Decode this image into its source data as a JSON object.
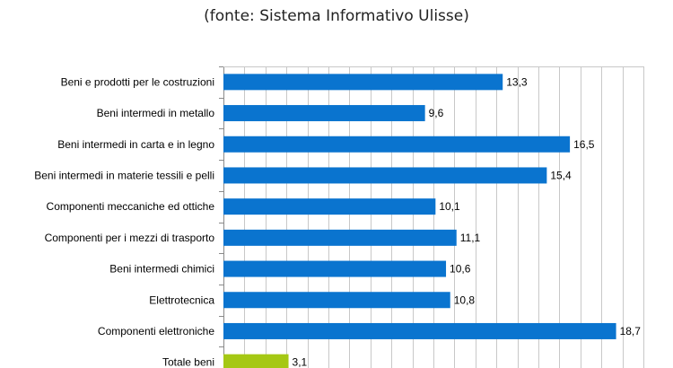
{
  "chart_data": {
    "type": "bar",
    "orientation": "horizontal",
    "title": "(fonte: Sistema Informativo Ulisse)",
    "categories": [
      "Beni e prodotti per le costruzioni",
      "Beni intermedi in metallo",
      "Beni intermedi in carta e in legno",
      "Beni intermedi in materie tessili e pelli",
      "Componenti meccaniche ed ottiche",
      "Componenti per i mezzi di trasporto",
      "Beni intermedi chimici",
      "Elettrotecnica",
      "Componenti elettroniche",
      "Totale beni"
    ],
    "values": [
      13.3,
      9.6,
      16.5,
      15.4,
      10.1,
      11.1,
      10.6,
      10.8,
      18.7,
      3.1
    ],
    "value_labels": [
      "13,3",
      "9,6",
      "16,5",
      "15,4",
      "10,1",
      "11,1",
      "10,6",
      "10,8",
      "18,7",
      "3,1"
    ],
    "xlim": [
      0,
      20
    ],
    "grid": true,
    "colors": {
      "bar": "#0a74cf",
      "highlight_bar": "#a5c814",
      "grid": "#c8c8c8",
      "axis": "#8a8a8a"
    },
    "highlight_category": "Totale beni"
  }
}
